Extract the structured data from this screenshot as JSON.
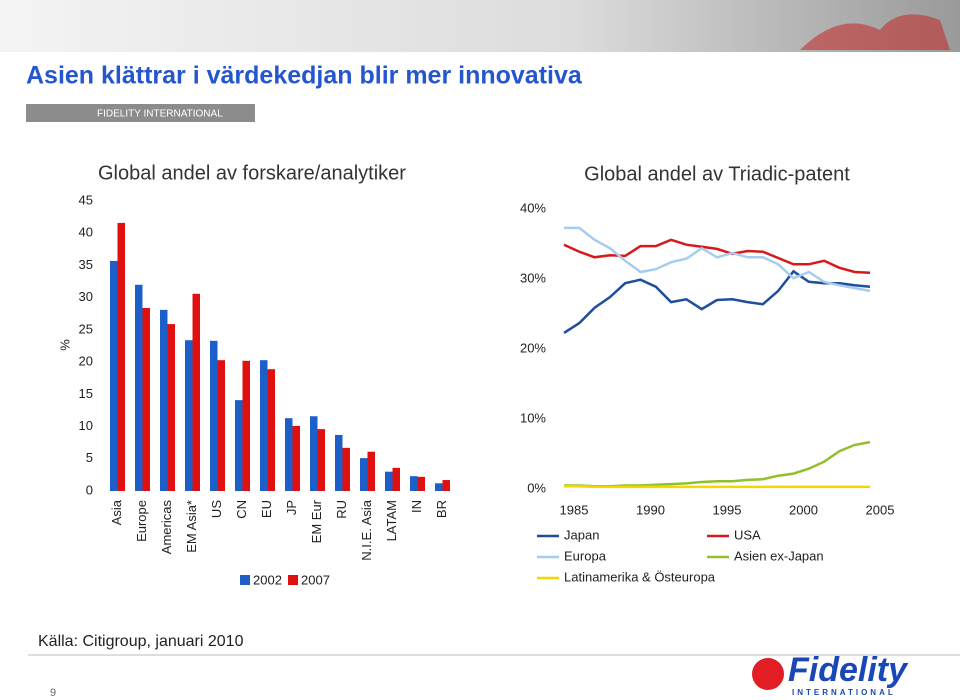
{
  "header": {
    "title": "Asien klättrar i värdekedjan blir mer innovativa",
    "subtitle": "FIDELITY INTERNATIONAL"
  },
  "chart_data": [
    {
      "type": "bar",
      "title": "Global andel av forskare/analytiker",
      "y_label": "%",
      "categories": [
        "Asia",
        "Europe",
        "Americas",
        "EM Asia*",
        "US",
        "CN",
        "EU",
        "JP",
        "EM Eur",
        "RU",
        "N.I.E. Asia",
        "LATAM",
        "IN",
        "BR"
      ],
      "series": [
        {
          "name": "2002",
          "color": "#1c5fc8",
          "values": [
            35.7,
            32.0,
            28.1,
            23.4,
            23.3,
            14.1,
            20.3,
            11.3,
            11.6,
            8.7,
            5.1,
            3.0,
            2.3,
            1.2
          ]
        },
        {
          "name": "2007",
          "color": "#e01010",
          "values": [
            41.6,
            28.4,
            25.9,
            30.6,
            20.3,
            20.2,
            18.9,
            10.1,
            9.6,
            6.7,
            6.1,
            3.6,
            2.2,
            1.7
          ]
        }
      ],
      "ylim": [
        0,
        45
      ],
      "yticks": [
        0,
        5,
        10,
        15,
        20,
        25,
        30,
        35,
        40,
        45
      ]
    },
    {
      "type": "line",
      "title": "Global andel av Triadic-patent",
      "x": [
        1985,
        1986,
        1987,
        1988,
        1989,
        1990,
        1991,
        1992,
        1993,
        1994,
        1995,
        1996,
        1997,
        1998,
        1999,
        2000,
        2001,
        2002,
        2003,
        2004,
        2005
      ],
      "series": [
        {
          "name": "Japan",
          "color": "#1f4e9c",
          "values": [
            22.3,
            23.7,
            25.9,
            27.4,
            29.4,
            29.9,
            28.9,
            26.7,
            27.1,
            25.7,
            27.0,
            27.1,
            26.7,
            26.4,
            28.3,
            31.1,
            29.6,
            29.4,
            29.4,
            29.1,
            28.9
          ]
        },
        {
          "name": "USA",
          "color": "#d7191c",
          "values": [
            34.9,
            33.9,
            33.1,
            33.4,
            33.3,
            34.7,
            34.7,
            35.6,
            34.9,
            34.6,
            34.3,
            33.6,
            34.0,
            33.9,
            33.0,
            32.1,
            32.1,
            32.6,
            31.6,
            31.0,
            30.9
          ]
        },
        {
          "name": "Europa",
          "color": "#a6cdee",
          "values": [
            37.3,
            37.3,
            35.6,
            34.4,
            32.6,
            31.0,
            31.4,
            32.4,
            32.9,
            34.4,
            33.1,
            33.7,
            33.1,
            33.1,
            32.1,
            30.1,
            31.0,
            29.6,
            29.1,
            28.7,
            28.3
          ]
        },
        {
          "name": "Asien ex-Japan",
          "color": "#92c02a",
          "values": [
            0.5,
            0.5,
            0.4,
            0.4,
            0.5,
            0.5,
            0.6,
            0.7,
            0.8,
            1.0,
            1.1,
            1.1,
            1.3,
            1.4,
            1.9,
            2.2,
            2.9,
            3.9,
            5.4,
            6.3,
            6.7
          ]
        },
        {
          "name": "Latinamerika & Östeuropa",
          "color": "#f2d800",
          "values": [
            0.4,
            0.4,
            0.3,
            0.3,
            0.3,
            0.3,
            0.3,
            0.3,
            0.3,
            0.3,
            0.3,
            0.3,
            0.3,
            0.3,
            0.3,
            0.3,
            0.3,
            0.3,
            0.3,
            0.3,
            0.3
          ]
        }
      ],
      "xlim": [
        1985,
        2005
      ],
      "xticks": [
        1985,
        1990,
        1995,
        2000,
        2005
      ],
      "ylim": [
        0,
        40
      ],
      "yticks": [
        {
          "value": 0,
          "label": "0%"
        },
        {
          "value": 10,
          "label": "10%"
        },
        {
          "value": 20,
          "label": "20%"
        },
        {
          "value": 30,
          "label": "30%"
        },
        {
          "value": 40,
          "label": "40%"
        }
      ]
    }
  ],
  "footer": {
    "source": "Källa: Citigroup, januari 2010",
    "page": "9",
    "logo": "Fidelity",
    "logo_sub": "INTERNATIONAL"
  }
}
